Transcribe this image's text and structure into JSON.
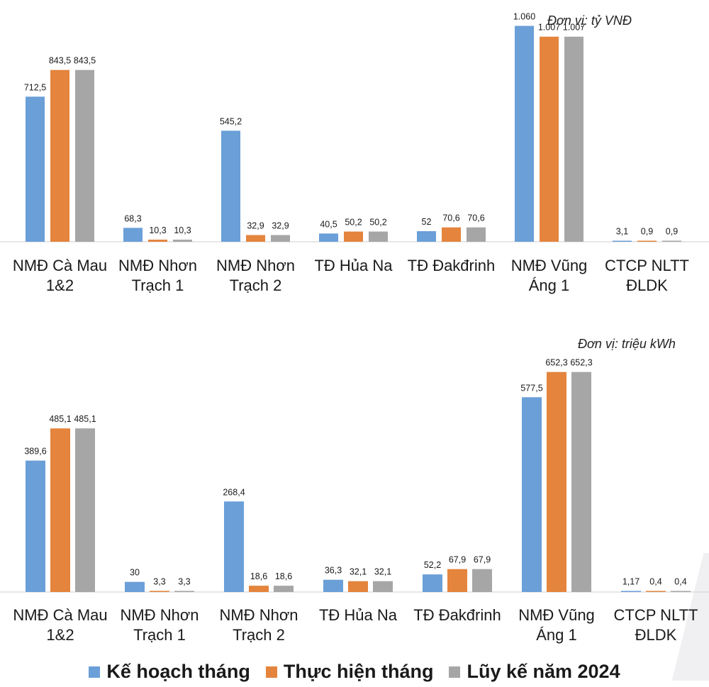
{
  "colors": {
    "plan": "#6a9fd8",
    "actual": "#e4843d",
    "cumulative": "#a6a6a6",
    "axis": "#cfcfcf"
  },
  "legend": [
    {
      "label": "Kế hoạch tháng",
      "color": "#6a9fd8"
    },
    {
      "label": "Thực hiện tháng",
      "color": "#e4843d"
    },
    {
      "label": "Lũy kế năm 2024",
      "color": "#a6a6a6"
    }
  ],
  "chart_data": [
    {
      "type": "bar",
      "unit_label": "Đơn vị: tỷ VNĐ",
      "categories": [
        [
          "NMĐ Cà Mau",
          "1&2"
        ],
        [
          "NMĐ Nhơn",
          "Trạch 1"
        ],
        [
          "NMĐ Nhơn",
          "Trạch 2"
        ],
        [
          "TĐ Hủa Na"
        ],
        [
          "TĐ Đakđrinh"
        ],
        [
          "NMĐ Vũng",
          "Áng 1"
        ],
        [
          "CTCP NLTT",
          "ĐLDK"
        ]
      ],
      "series": [
        {
          "name": "Kế hoạch tháng",
          "values": [
            712.5,
            68.3,
            545.2,
            40.5,
            52,
            1060,
            3.1
          ],
          "labels": [
            "712,5",
            "68,3",
            "545,2",
            "40,5",
            "52",
            "1.060",
            "3,1"
          ]
        },
        {
          "name": "Thực hiện tháng",
          "values": [
            843.5,
            10.3,
            32.9,
            50.2,
            70.6,
            1007,
            0.9
          ],
          "labels": [
            "843,5",
            "10,3",
            "32,9",
            "50,2",
            "70,6",
            "1.007",
            "0,9"
          ]
        },
        {
          "name": "Lũy kế năm 2024",
          "values": [
            843.5,
            10.3,
            32.9,
            50.2,
            70.6,
            1007,
            0.9
          ],
          "labels": [
            "843,5",
            "10,3",
            "32,9",
            "50,2",
            "70,6",
            "1.007",
            "0,9"
          ]
        }
      ],
      "ylim": [
        0,
        1100
      ]
    },
    {
      "type": "bar",
      "unit_label": "Đơn vị: triệu kWh",
      "categories": [
        [
          "NMĐ Cà Mau",
          "1&2"
        ],
        [
          "NMĐ Nhơn",
          "Trạch 1"
        ],
        [
          "NMĐ Nhơn",
          "Trạch 2"
        ],
        [
          "TĐ Hủa Na"
        ],
        [
          "TĐ Đakđrinh"
        ],
        [
          "NMĐ Vũng",
          "Áng 1"
        ],
        [
          "CTCP NLTT",
          "ĐLDK"
        ]
      ],
      "series": [
        {
          "name": "Kế hoạch tháng",
          "values": [
            389.6,
            30,
            268.4,
            36.3,
            52.2,
            577.5,
            1.17
          ],
          "labels": [
            "389,6",
            "30",
            "268,4",
            "36,3",
            "52,2",
            "577,5",
            "1,17"
          ]
        },
        {
          "name": "Thực hiện tháng",
          "values": [
            485.1,
            3.3,
            18.6,
            32.1,
            67.9,
            652.3,
            0.4
          ],
          "labels": [
            "485,1",
            "3,3",
            "18,6",
            "32,1",
            "67,9",
            "652,3",
            "0,4"
          ]
        },
        {
          "name": "Lũy kế năm 2024",
          "values": [
            485.1,
            3.3,
            18.6,
            32.1,
            67.9,
            652.3,
            0.4
          ],
          "labels": [
            "485,1",
            "3,3",
            "18,6",
            "32,1",
            "67,9",
            "652,3",
            "0,4"
          ]
        }
      ],
      "ylim": [
        0,
        700
      ]
    }
  ]
}
